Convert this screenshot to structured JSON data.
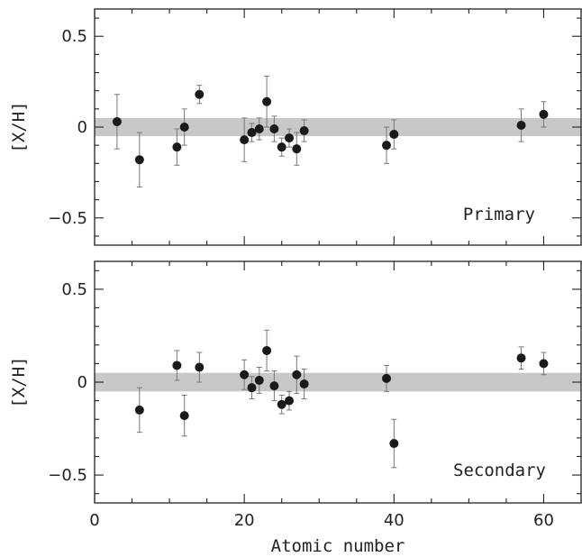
{
  "chart_data": [
    {
      "type": "scatter",
      "title": "",
      "annotation": "Primary",
      "xlabel": "",
      "ylabel": "[X/H]",
      "xlim": [
        0,
        65
      ],
      "ylim": [
        -0.65,
        0.65
      ],
      "yticks": [
        -0.5,
        0,
        0.5
      ],
      "ytick_labels": [
        "−0.5",
        "0",
        "0.5"
      ],
      "band": [
        -0.05,
        0.05
      ],
      "band_color": "#c8c8c8",
      "point_color": "#1a1a1a",
      "points": [
        {
          "x": 3,
          "y": 0.03,
          "err": 0.15
        },
        {
          "x": 6,
          "y": -0.18,
          "err": 0.15
        },
        {
          "x": 11,
          "y": -0.11,
          "err": 0.1
        },
        {
          "x": 12,
          "y": 0.0,
          "err": 0.1
        },
        {
          "x": 14,
          "y": 0.18,
          "err": 0.05
        },
        {
          "x": 20,
          "y": -0.07,
          "err": 0.12
        },
        {
          "x": 21,
          "y": -0.03,
          "err": 0.05
        },
        {
          "x": 22,
          "y": -0.01,
          "err": 0.06
        },
        {
          "x": 23,
          "y": 0.14,
          "err": 0.14
        },
        {
          "x": 24,
          "y": -0.01,
          "err": 0.07
        },
        {
          "x": 25,
          "y": -0.11,
          "err": 0.05
        },
        {
          "x": 26,
          "y": -0.06,
          "err": 0.05
        },
        {
          "x": 27,
          "y": -0.12,
          "err": 0.09
        },
        {
          "x": 28,
          "y": -0.02,
          "err": 0.06
        },
        {
          "x": 39,
          "y": -0.1,
          "err": 0.1
        },
        {
          "x": 40,
          "y": -0.04,
          "err": 0.08
        },
        {
          "x": 57,
          "y": 0.01,
          "err": 0.09
        },
        {
          "x": 60,
          "y": 0.07,
          "err": 0.07
        }
      ]
    },
    {
      "type": "scatter",
      "title": "",
      "annotation": "Secondary",
      "xlabel": "Atomic number",
      "ylabel": "[X/H]",
      "xlim": [
        0,
        65
      ],
      "ylim": [
        -0.65,
        0.65
      ],
      "xticks": [
        0,
        20,
        40,
        60
      ],
      "xtick_labels": [
        "0",
        "20",
        "40",
        "60"
      ],
      "yticks": [
        -0.5,
        0,
        0.5
      ],
      "ytick_labels": [
        "−0.5",
        "0",
        "0.5"
      ],
      "band": [
        -0.05,
        0.05
      ],
      "band_color": "#c8c8c8",
      "point_color": "#1a1a1a",
      "points": [
        {
          "x": 6,
          "y": -0.15,
          "err": 0.12
        },
        {
          "x": 11,
          "y": 0.09,
          "err": 0.08
        },
        {
          "x": 12,
          "y": -0.18,
          "err": 0.11
        },
        {
          "x": 14,
          "y": 0.08,
          "err": 0.08
        },
        {
          "x": 20,
          "y": 0.04,
          "err": 0.08
        },
        {
          "x": 21,
          "y": -0.03,
          "err": 0.06
        },
        {
          "x": 22,
          "y": 0.01,
          "err": 0.07
        },
        {
          "x": 23,
          "y": 0.17,
          "err": 0.11
        },
        {
          "x": 24,
          "y": -0.02,
          "err": 0.08
        },
        {
          "x": 25,
          "y": -0.12,
          "err": 0.05
        },
        {
          "x": 26,
          "y": -0.1,
          "err": 0.05
        },
        {
          "x": 27,
          "y": 0.04,
          "err": 0.1
        },
        {
          "x": 28,
          "y": -0.01,
          "err": 0.08
        },
        {
          "x": 39,
          "y": 0.02,
          "err": 0.07
        },
        {
          "x": 40,
          "y": -0.33,
          "err": 0.13
        },
        {
          "x": 57,
          "y": 0.13,
          "err": 0.06
        },
        {
          "x": 60,
          "y": 0.1,
          "err": 0.06
        }
      ]
    }
  ]
}
